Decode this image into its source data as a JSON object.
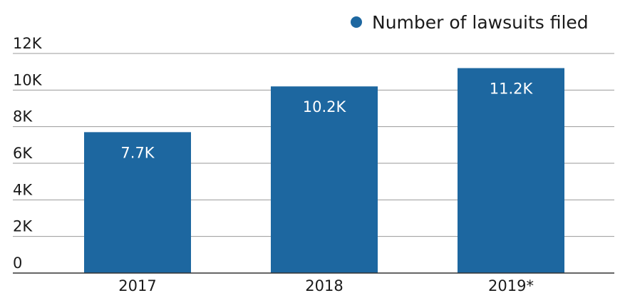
{
  "chart_data": {
    "type": "bar",
    "categories": [
      "2017",
      "2018",
      "2019*"
    ],
    "series": [
      {
        "name": "Number of lawsuits filed",
        "values": [
          7.7,
          10.2,
          11.2
        ],
        "value_labels": [
          "7.7K",
          "10.2K",
          "11.2K"
        ]
      }
    ],
    "yticks": [
      "0",
      "2K",
      "4K",
      "6K",
      "8K",
      "10K",
      "12K"
    ],
    "ytick_values": [
      0,
      2,
      4,
      6,
      8,
      10,
      12
    ],
    "ylim": [
      0,
      12
    ],
    "grid": true,
    "legend": "top-right",
    "colors": {
      "bar": "#1d67a0",
      "grid": "#9a9a9a",
      "axis": "#333333",
      "text": "#1a1a1a"
    }
  }
}
